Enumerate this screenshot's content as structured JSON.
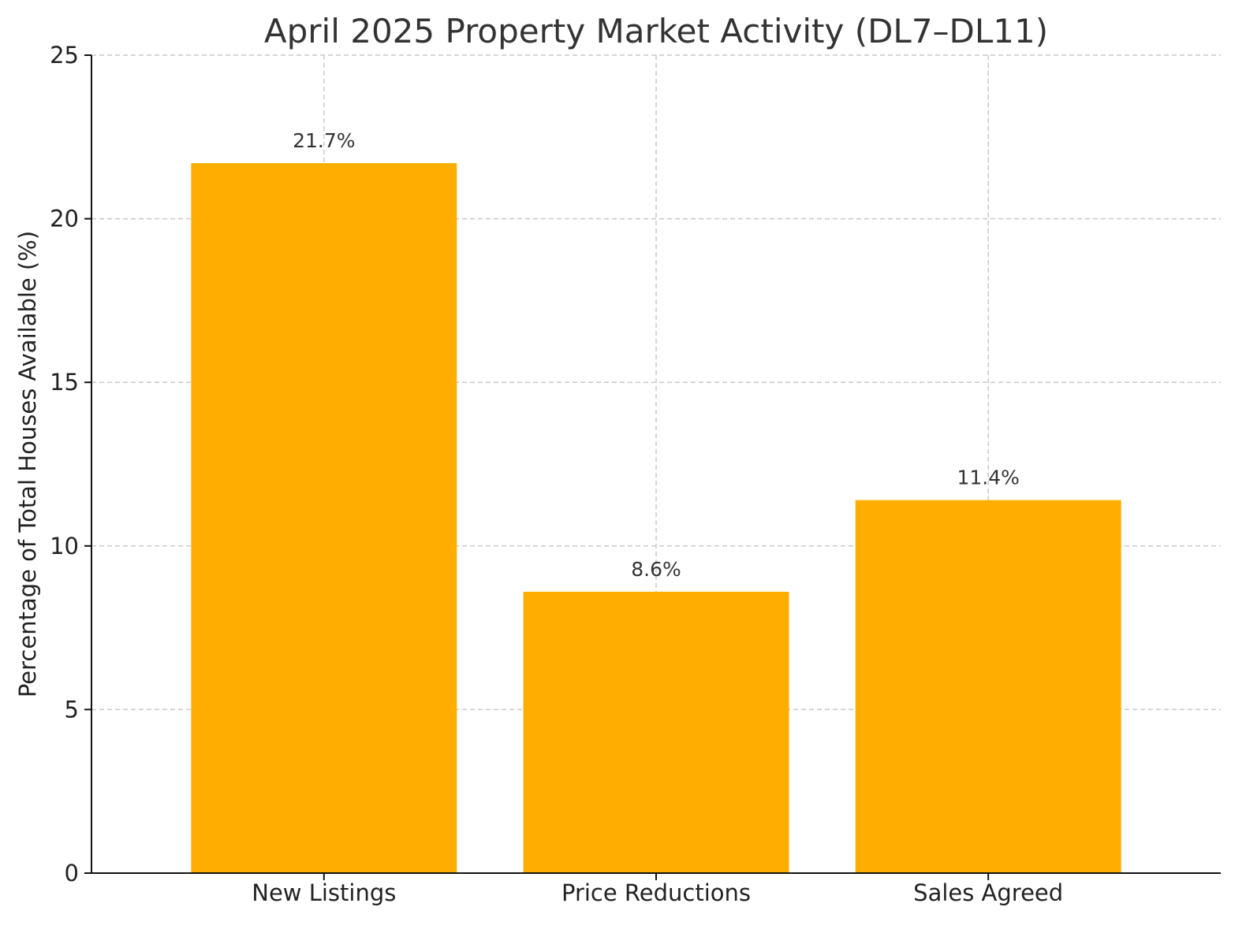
{
  "chart_data": {
    "type": "bar",
    "title": "April 2025 Property Market Activity (DL7–DL11)",
    "xlabel": "",
    "ylabel": "Percentage of Total Houses Available (%)",
    "categories": [
      "New Listings",
      "Price Reductions",
      "Sales Agreed"
    ],
    "values": [
      21.7,
      8.6,
      11.4
    ],
    "data_labels": [
      "21.7%",
      "8.6%",
      "11.4%"
    ],
    "ylim": [
      0,
      25
    ],
    "yticks": [
      0,
      5,
      10,
      15,
      20,
      25
    ],
    "grid": true,
    "bar_color": "#FFAE00"
  }
}
